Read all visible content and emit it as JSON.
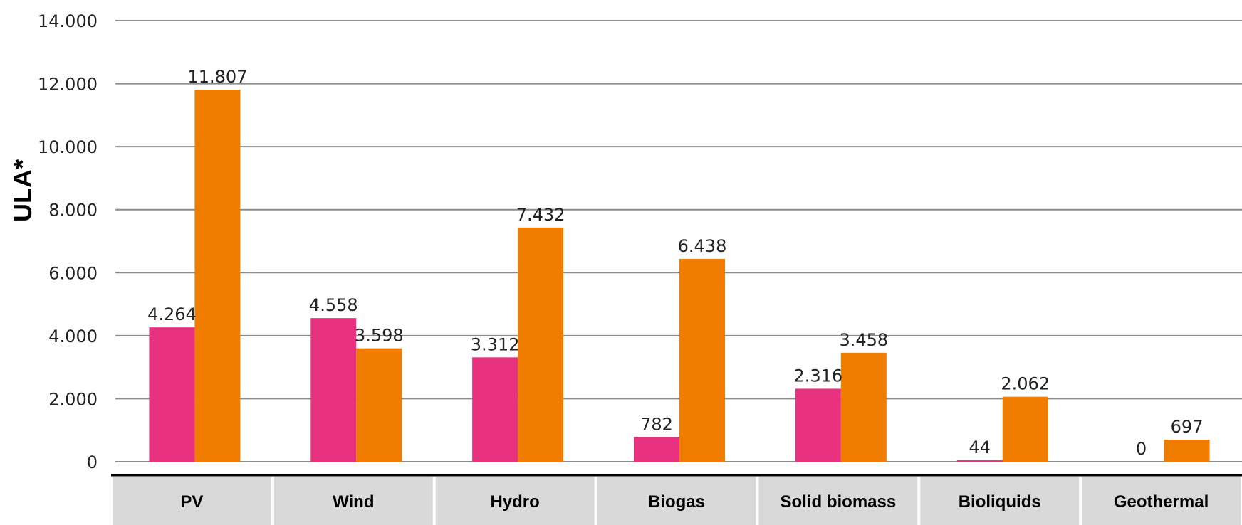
{
  "chart_data": {
    "type": "bar",
    "ylabel": "ULA*",
    "categories": [
      "PV",
      "Wind",
      "Hydro",
      "Biogas",
      "Solid biomass",
      "Bioliquids",
      "Geothermal"
    ],
    "series": [
      {
        "values": [
          4264,
          4558,
          3312,
          782,
          2316,
          44,
          0
        ],
        "labels": [
          "4.264",
          "4.558",
          "3.312",
          "782",
          "2.316",
          "44",
          "0"
        ],
        "color": "#E8317F"
      },
      {
        "values": [
          11807,
          3598,
          7432,
          6438,
          3458,
          2062,
          697
        ],
        "labels": [
          "11.807",
          "3.598",
          "7.432",
          "6.438",
          "3.458",
          "2.062",
          "697"
        ],
        "color": "#F07D00"
      }
    ],
    "yticks": [
      0,
      2000,
      4000,
      6000,
      8000,
      10000,
      12000,
      14000
    ],
    "ytick_labels": [
      "0",
      "2.000",
      "4.000",
      "6.000",
      "8.000",
      "10.000",
      "12.000",
      "14.000"
    ],
    "ylim": [
      0,
      14000
    ],
    "grid": true,
    "legend": "none"
  }
}
